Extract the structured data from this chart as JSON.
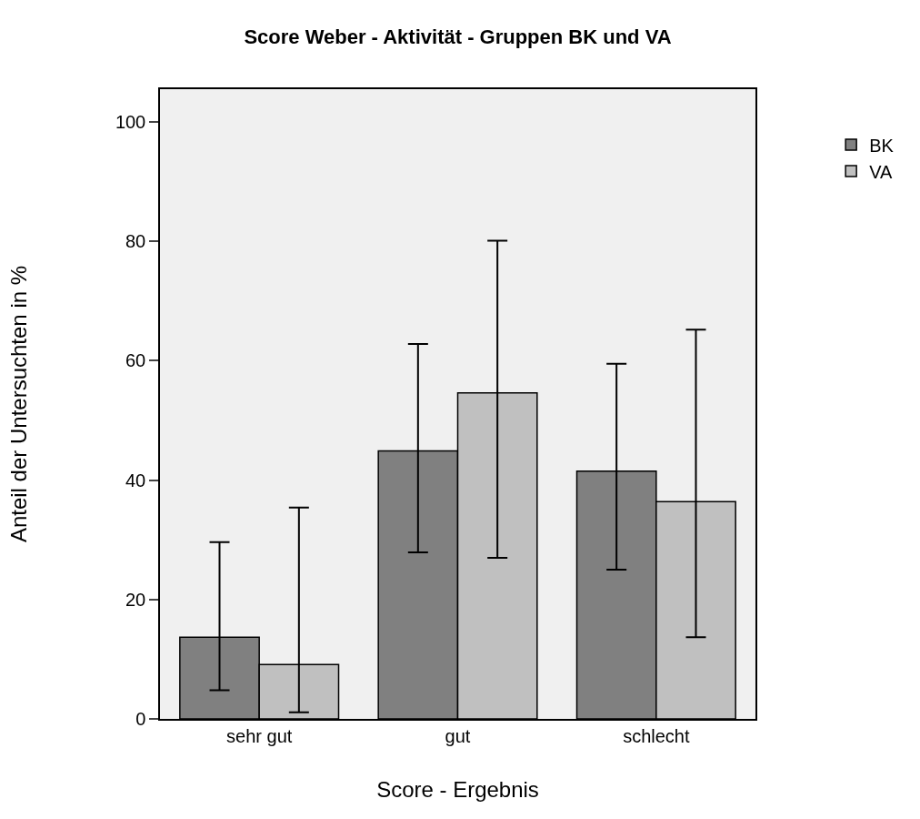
{
  "chart_data": {
    "type": "bar",
    "title": "Score Weber - Aktivität - Gruppen BK und VA",
    "xlabel": "Score - Ergebnis",
    "ylabel": "Anteil der Untersuchten in %",
    "categories": [
      "sehr gut",
      "gut",
      "schlecht"
    ],
    "series": [
      {
        "name": "BK",
        "color": "#808080",
        "values": [
          13.7,
          44.9,
          41.5
        ],
        "errors": [
          [
            4.8,
            29.6
          ],
          [
            27.9,
            62.8
          ],
          [
            25.0,
            59.5
          ]
        ]
      },
      {
        "name": "VA",
        "color": "#c0c0c0",
        "values": [
          9.1,
          54.6,
          36.4
        ],
        "errors": [
          [
            1.1,
            35.4
          ],
          [
            27.0,
            80.1
          ],
          [
            13.7,
            65.2
          ]
        ]
      }
    ],
    "ylim": [
      0,
      105.5
    ],
    "yticks": [
      0,
      20,
      40,
      60,
      80,
      100
    ],
    "grid": false,
    "legend": "top right"
  }
}
